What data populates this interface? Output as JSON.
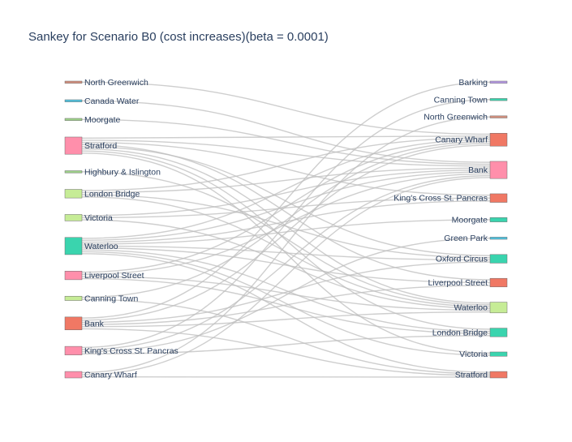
{
  "chart_data": {
    "type": "sankey",
    "title": "Sankey for Scenario B0 (cost increases)(beta = 0.0001)",
    "link_color": "#bdbdbd",
    "sources": [
      {
        "label": "North Greenwich",
        "color": "#d4907e",
        "weight": 1
      },
      {
        "label": "Canada Water",
        "color": "#4fc3e0",
        "weight": 1
      },
      {
        "label": "Moorgate",
        "color": "#9ed28a",
        "weight": 1
      },
      {
        "label": "Stratford",
        "color": "#ff8fab",
        "weight": 8
      },
      {
        "label": "Highbury & Islington",
        "color": "#9ed28a",
        "weight": 1
      },
      {
        "label": "London Bridge",
        "color": "#c6ec96",
        "weight": 4
      },
      {
        "label": "Victoria",
        "color": "#c6ec96",
        "weight": 3
      },
      {
        "label": "Waterloo",
        "color": "#3ad4ae",
        "weight": 8
      },
      {
        "label": "Liverpool Street",
        "color": "#ff8fab",
        "weight": 4
      },
      {
        "label": "Canning Town",
        "color": "#c6ec96",
        "weight": 2
      },
      {
        "label": "Bank",
        "color": "#f07864",
        "weight": 6
      },
      {
        "label": "King's Cross St. Pancras",
        "color": "#ff8fab",
        "weight": 4
      },
      {
        "label": "Canary Wharf",
        "color": "#ff8fab",
        "weight": 3
      }
    ],
    "targets": [
      {
        "label": "Barking",
        "color": "#b79ae6",
        "weight": 1
      },
      {
        "label": "Canning Town",
        "color": "#3ad4ae",
        "weight": 1
      },
      {
        "label": "North Greenwich",
        "color": "#d4907e",
        "weight": 1
      },
      {
        "label": "Canary Wharf",
        "color": "#f07864",
        "weight": 6
      },
      {
        "label": "Bank",
        "color": "#ff8fab",
        "weight": 8
      },
      {
        "label": "King's Cross St. Pancras",
        "color": "#f07864",
        "weight": 4
      },
      {
        "label": "Moorgate",
        "color": "#3ad4ae",
        "weight": 2
      },
      {
        "label": "Green Park",
        "color": "#4fc3e0",
        "weight": 1
      },
      {
        "label": "Oxford Circus",
        "color": "#3ad4ae",
        "weight": 4
      },
      {
        "label": "Liverpool Street",
        "color": "#f07864",
        "weight": 4
      },
      {
        "label": "Waterloo",
        "color": "#c6ec96",
        "weight": 5
      },
      {
        "label": "London Bridge",
        "color": "#3ad4ae",
        "weight": 4
      },
      {
        "label": "Victoria",
        "color": "#3ad4ae",
        "weight": 2
      },
      {
        "label": "Stratford",
        "color": "#f07864",
        "weight": 3
      }
    ],
    "links": [
      [
        "North Greenwich",
        "Canary Wharf"
      ],
      [
        "Canada Water",
        "Bank"
      ],
      [
        "Moorgate",
        "Bank"
      ],
      [
        "Stratford",
        "Canary Wharf"
      ],
      [
        "Stratford",
        "Bank"
      ],
      [
        "Stratford",
        "King's Cross St. Pancras"
      ],
      [
        "Stratford",
        "Liverpool Street"
      ],
      [
        "Stratford",
        "Oxford Circus"
      ],
      [
        "Stratford",
        "Waterloo"
      ],
      [
        "Stratford",
        "London Bridge"
      ],
      [
        "Stratford",
        "Victoria"
      ],
      [
        "Highbury & Islington",
        "Waterloo"
      ],
      [
        "London Bridge",
        "Canary Wharf"
      ],
      [
        "London Bridge",
        "Bank"
      ],
      [
        "London Bridge",
        "Oxford Circus"
      ],
      [
        "London Bridge",
        "Waterloo"
      ],
      [
        "Victoria",
        "Bank"
      ],
      [
        "Victoria",
        "King's Cross St. Pancras"
      ],
      [
        "Victoria",
        "Waterloo"
      ],
      [
        "Waterloo",
        "Canary Wharf"
      ],
      [
        "Waterloo",
        "Bank"
      ],
      [
        "Waterloo",
        "King's Cross St. Pancras"
      ],
      [
        "Waterloo",
        "Moorgate"
      ],
      [
        "Waterloo",
        "Oxford Circus"
      ],
      [
        "Waterloo",
        "Liverpool Street"
      ],
      [
        "Waterloo",
        "London Bridge"
      ],
      [
        "Waterloo",
        "Victoria"
      ],
      [
        "Waterloo",
        "Stratford"
      ],
      [
        "Liverpool Street",
        "Canary Wharf"
      ],
      [
        "Liverpool Street",
        "Bank"
      ],
      [
        "Liverpool Street",
        "Waterloo"
      ],
      [
        "Liverpool Street",
        "London Bridge"
      ],
      [
        "Canning Town",
        "Canary Wharf"
      ],
      [
        "Canning Town",
        "Stratford"
      ],
      [
        "Bank",
        "Barking"
      ],
      [
        "Bank",
        "Canary Wharf"
      ],
      [
        "Bank",
        "Oxford Circus"
      ],
      [
        "Bank",
        "Liverpool Street"
      ],
      [
        "Bank",
        "Waterloo"
      ],
      [
        "Bank",
        "Stratford"
      ],
      [
        "King's Cross St. Pancras",
        "Canning Town"
      ],
      [
        "King's Cross St. Pancras",
        "Bank"
      ],
      [
        "King's Cross St. Pancras",
        "Green Park"
      ],
      [
        "King's Cross St. Pancras",
        "London Bridge"
      ],
      [
        "Canary Wharf",
        "North Greenwich"
      ],
      [
        "Canary Wharf",
        "Bank"
      ],
      [
        "Canary Wharf",
        "Stratford"
      ]
    ]
  }
}
